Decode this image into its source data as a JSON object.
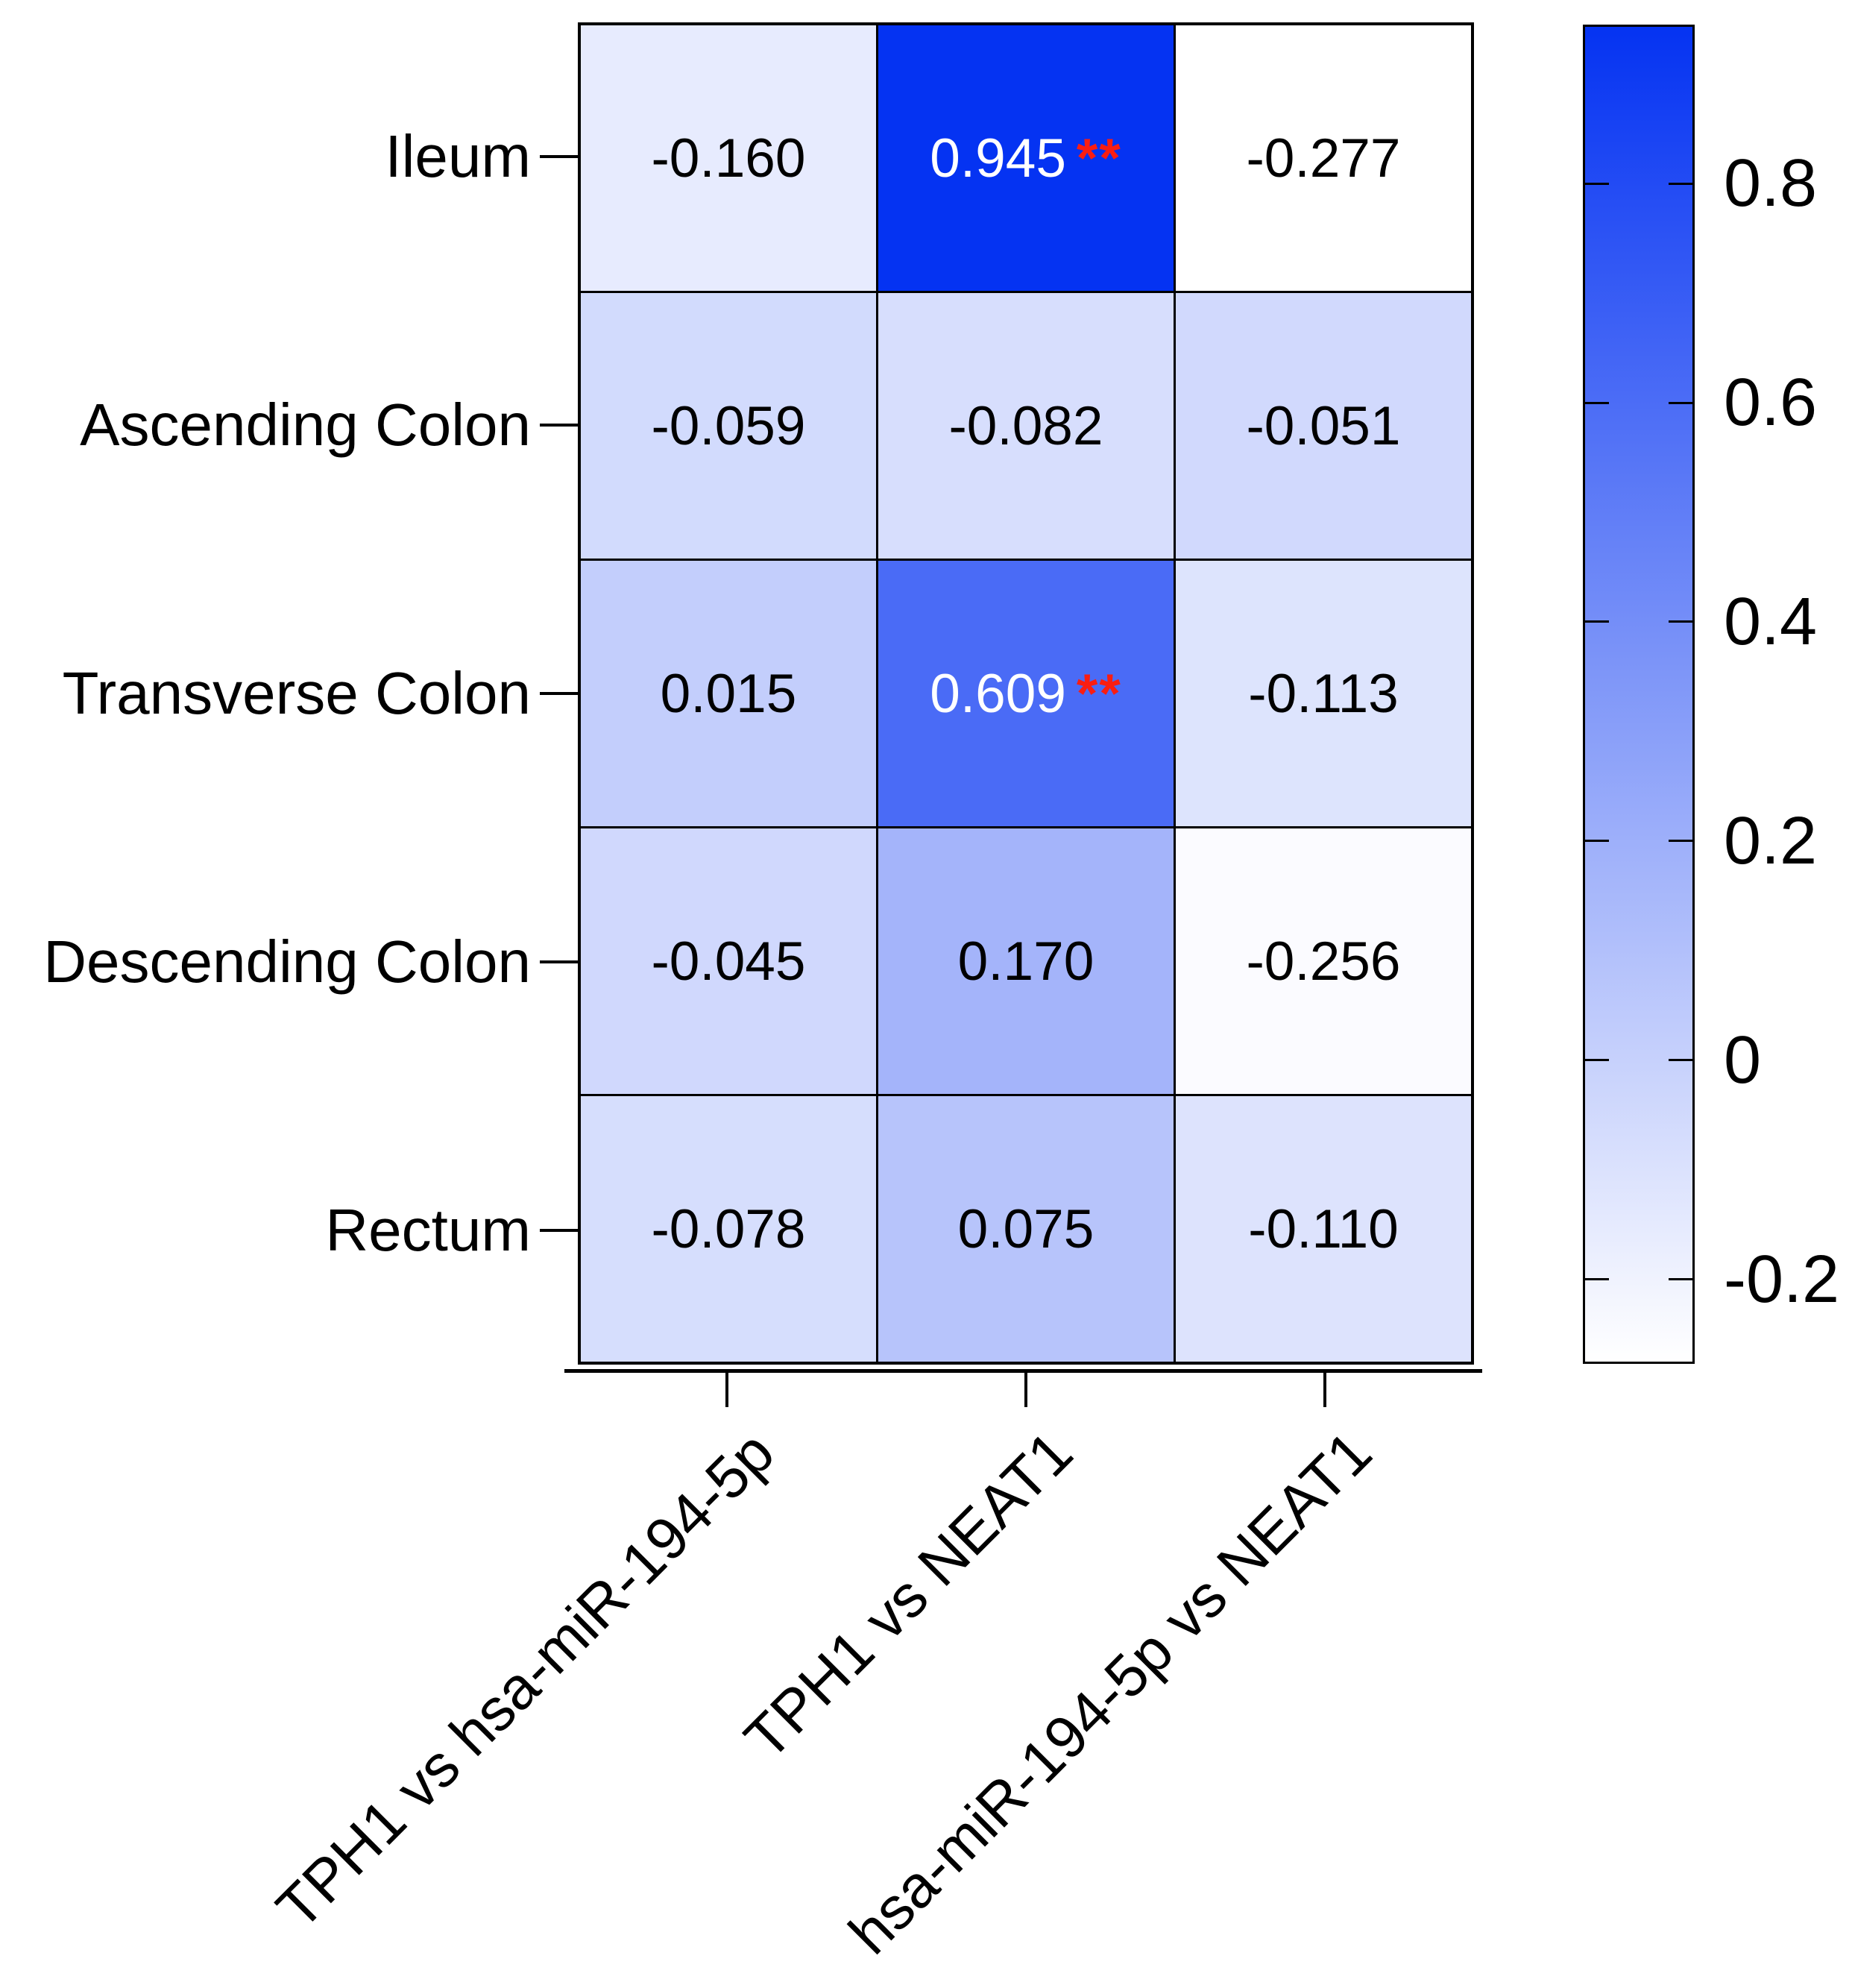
{
  "chart_data": {
    "type": "heatmap",
    "title": "",
    "rows": [
      "Ileum",
      "Ascending Colon",
      "Transverse Colon",
      "Descending Colon",
      "Rectum"
    ],
    "columns": [
      "TPH1 vs hsa-miR-194-5p",
      "TPH1 vs NEAT1",
      "hsa-miR-194-5p vs NEAT1"
    ],
    "values": [
      [
        -0.16,
        0.945,
        -0.277
      ],
      [
        -0.059,
        -0.082,
        -0.051
      ],
      [
        0.015,
        0.609,
        -0.113
      ],
      [
        -0.045,
        0.17,
        -0.256
      ],
      [
        -0.078,
        0.075,
        -0.11
      ]
    ],
    "value_labels": [
      [
        "-0.160",
        "0.945",
        "-0.277"
      ],
      [
        "-0.059",
        "-0.082",
        "-0.051"
      ],
      [
        "0.015",
        "0.609",
        "-0.113"
      ],
      [
        "-0.045",
        "0.170",
        "-0.256"
      ],
      [
        "-0.078",
        "0.075",
        "-0.110"
      ]
    ],
    "significance": [
      [
        "",
        "**",
        ""
      ],
      [
        "",
        "",
        ""
      ],
      [
        "",
        "**",
        ""
      ],
      [
        "",
        "",
        ""
      ],
      [
        "",
        "",
        ""
      ]
    ],
    "colorbar": {
      "tick_labels": [
        "0.8",
        "0.6",
        "0.4",
        "0.2",
        "0",
        "-0.2"
      ],
      "tick_values": [
        0.8,
        0.6,
        0.4,
        0.2,
        0,
        -0.2
      ],
      "vmin": -0.277,
      "vmax": 0.945,
      "color_max": "#0533f2",
      "color_min": "#ffffff",
      "position": "right"
    },
    "colors": {
      "significance": "#fa1d12",
      "cell_text_dark": "#000000",
      "cell_text_light": "#ffffff",
      "border": "#000000",
      "background": "#ffffff"
    },
    "grid": "on"
  }
}
